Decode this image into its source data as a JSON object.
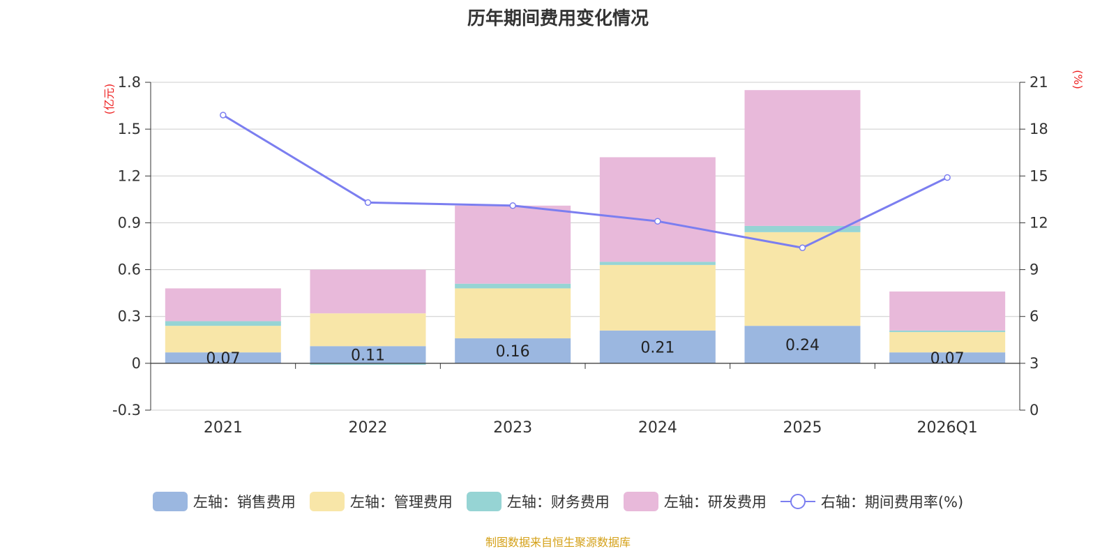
{
  "title": "历年期间费用变化情况",
  "source": "制图数据来自恒生聚源数据库",
  "chart_data": {
    "type": "bar",
    "stacked": true,
    "title": "历年期间费用变化情况",
    "categories": [
      "2021",
      "2022",
      "2023",
      "2024",
      "2025",
      "2026Q1"
    ],
    "left_axis": {
      "label": "(亿元)",
      "min": -0.3,
      "max": 1.8,
      "ticks": [
        "-0.3",
        "0",
        "0.3",
        "0.6",
        "0.9",
        "1.2",
        "1.5",
        "1.8"
      ]
    },
    "right_axis": {
      "label": "(%)",
      "min": 0,
      "max": 21,
      "ticks": [
        "0",
        "3",
        "6",
        "9",
        "12",
        "15",
        "18",
        "21"
      ]
    },
    "series": [
      {
        "name": "左轴：销售费用",
        "axis": "left",
        "color": "#9bb7e0",
        "values": [
          0.07,
          0.11,
          0.16,
          0.21,
          0.24,
          0.07
        ],
        "labels": [
          "0.07",
          "0.11",
          "0.16",
          "0.21",
          "0.24",
          "0.07"
        ]
      },
      {
        "name": "左轴：管理费用",
        "axis": "left",
        "color": "#f8e6a8",
        "values": [
          0.17,
          0.21,
          0.32,
          0.42,
          0.6,
          0.13
        ]
      },
      {
        "name": "左轴：财务费用",
        "axis": "left",
        "color": "#96d4d4",
        "values": [
          0.03,
          -0.01,
          0.03,
          0.02,
          0.04,
          0.01
        ]
      },
      {
        "name": "左轴：研发费用",
        "axis": "left",
        "color": "#e8b9da",
        "values": [
          0.21,
          0.28,
          0.5,
          0.67,
          0.87,
          0.25
        ]
      }
    ],
    "line": {
      "name": "右轴：期间费用率(%)",
      "axis": "right",
      "color": "#7b7ef0",
      "values": [
        18.9,
        13.3,
        13.1,
        12.1,
        10.4,
        14.9
      ]
    }
  }
}
